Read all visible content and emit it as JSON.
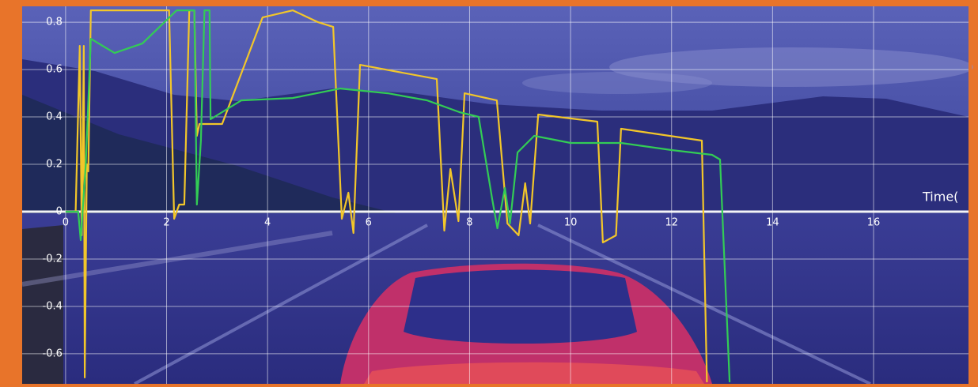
{
  "chart_data": {
    "type": "line",
    "x_label": "Time(",
    "xlim": [
      -0.86,
      17.88
    ],
    "ylim": [
      -0.727,
      0.867
    ],
    "xticks": [
      0,
      2,
      4,
      6,
      8,
      10,
      12,
      14,
      16
    ],
    "yticks": [
      -0.6,
      -0.4,
      -0.2,
      0,
      0.2,
      0.4,
      0.6,
      0.8
    ],
    "grid": true,
    "series": [
      {
        "name": null,
        "color": "#f2c62a",
        "x": [
          0,
          0.2,
          0.28,
          0.32,
          0.36,
          0.38,
          0.42,
          0.45,
          0.5,
          0.55,
          2.05,
          2.15,
          2.25,
          2.35,
          2.45,
          2.55,
          2.6,
          2.65,
          3.1,
          3.9,
          4.5,
          5.0,
          5.3,
          5.47,
          5.6,
          5.7,
          5.83,
          7.35,
          7.5,
          7.62,
          7.78,
          7.9,
          8.54,
          8.75,
          8.97,
          9.1,
          9.2,
          9.36,
          10.53,
          10.64,
          10.9,
          11.0,
          12.6,
          12.7
        ],
        "values": [
          0,
          0,
          0.7,
          -0.1,
          0.7,
          -0.7,
          0.2,
          0.17,
          0.85,
          0.85,
          0.85,
          -0.03,
          0.03,
          0.03,
          0.85,
          0.85,
          0.32,
          0.37,
          0.37,
          0.82,
          0.85,
          0.8,
          0.78,
          -0.03,
          0.08,
          -0.09,
          0.62,
          0.56,
          -0.08,
          0.18,
          -0.04,
          0.5,
          0.47,
          -0.05,
          -0.1,
          0.12,
          -0.05,
          0.41,
          0.38,
          -0.13,
          -0.1,
          0.35,
          0.3,
          -0.72
        ]
      },
      {
        "name": null,
        "color": "#33cc55",
        "x": [
          0,
          0.25,
          0.3,
          0.4,
          0.5,
          0.97,
          1.52,
          2.2,
          2.55,
          2.6,
          2.68,
          2.75,
          2.85,
          2.87,
          3.48,
          4.5,
          5.44,
          6.38,
          7.16,
          7.8,
          8.18,
          8.45,
          8.55,
          8.7,
          8.8,
          8.95,
          9.28,
          10.0,
          11.0,
          12.0,
          12.8,
          12.96,
          13.15
        ],
        "values": [
          0,
          0,
          -0.12,
          0.2,
          0.73,
          0.67,
          0.71,
          0.85,
          0.85,
          0.03,
          0.3,
          0.85,
          0.85,
          0.39,
          0.47,
          0.48,
          0.52,
          0.5,
          0.47,
          0.42,
          0.4,
          0.05,
          -0.07,
          0.1,
          -0.05,
          0.25,
          0.32,
          0.29,
          0.29,
          0.26,
          0.24,
          0.22,
          -0.72
        ]
      }
    ]
  }
}
